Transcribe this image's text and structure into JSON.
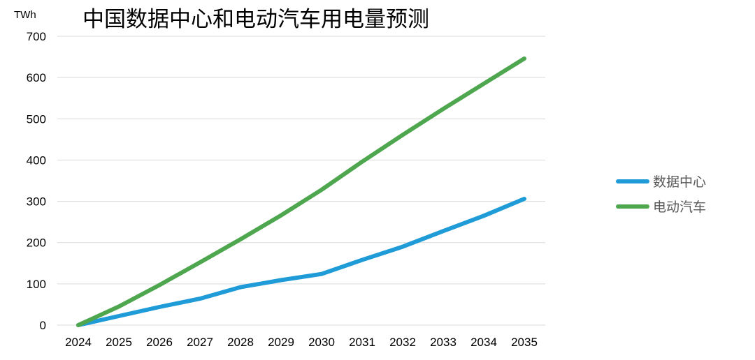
{
  "chart_data": {
    "type": "line",
    "title": "中国数据中心和电动汽车用电量预测",
    "ylabel": "TWh",
    "xlabel": "",
    "ylim": [
      0,
      700
    ],
    "yticks": [
      "0",
      "100",
      "200",
      "300",
      "400",
      "500",
      "600",
      "700"
    ],
    "x": [
      "2024",
      "2025",
      "2026",
      "2027",
      "2028",
      "2029",
      "2030",
      "2031",
      "2032",
      "2033",
      "2034",
      "2035"
    ],
    "grid": true,
    "legend_position": "right",
    "series": [
      {
        "name": "数据中心",
        "color": "#1f9bd7",
        "values": [
          0,
          22,
          44,
          64,
          92,
          109,
          124,
          158,
          190,
          228,
          265,
          306
        ]
      },
      {
        "name": "电动汽车",
        "color": "#4ea64e",
        "values": [
          0,
          45,
          97,
          152,
          208,
          266,
          328,
          396,
          461,
          524,
          585,
          646
        ]
      }
    ]
  }
}
